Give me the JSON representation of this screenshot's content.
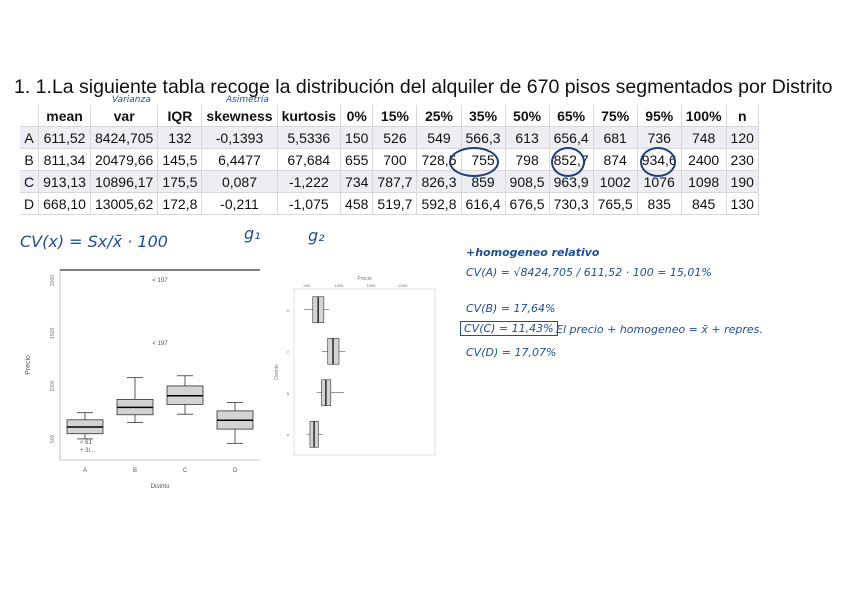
{
  "title": "1. 1.La siguiente tabla recoge la distribución del alquiler de 670 pisos segmentados por Distrito",
  "table": {
    "headers": [
      "",
      "mean",
      "var",
      "IQR",
      "skewness",
      "kurtosis",
      "0%",
      "15%",
      "25%",
      "35%",
      "50%",
      "65%",
      "75%",
      "95%",
      "100%",
      "n"
    ],
    "rows": [
      [
        "A",
        "611,52",
        "8424,705",
        "132",
        "-0,1393",
        "5,5336",
        "150",
        "526",
        "549",
        "566,3",
        "613",
        "656,4",
        "681",
        "736",
        "748",
        "120"
      ],
      [
        "B",
        "811,34",
        "20479,66",
        "145,5",
        "6,4477",
        "67,684",
        "655",
        "700",
        "728,5",
        "755",
        "798",
        "852,7",
        "874",
        "934,6",
        "2400",
        "230"
      ],
      [
        "C",
        "913,13",
        "10896,17",
        "175,5",
        "0,087",
        "-1,222",
        "734",
        "787,7",
        "826,3",
        "859",
        "908,5",
        "963,9",
        "1002",
        "1076",
        "1098",
        "190"
      ],
      [
        "D",
        "668,10",
        "13005,62",
        "172,8",
        "-0,211",
        "-1,075",
        "458",
        "519,7",
        "592,8",
        "616,4",
        "676,5",
        "730,3",
        "765,5",
        "835",
        "845",
        "130"
      ]
    ]
  },
  "annotations": {
    "varianza": "Varianza",
    "asimetria": "Asimetría",
    "cv_formula": "CV(x) = Sx/x̄ · 100",
    "g1": "g₁",
    "g2": "g₂",
    "homogeneo_title": "+homogeneo relativo",
    "cv_a": "CV(A) = √8424,705 / 611,52 · 100 = 15,01%",
    "cv_b": "CV(B) = 17,64%",
    "cv_c": "CV(C) = 11,43%",
    "cv_c_note": "El precio + homogeneo = x̄ + repres.",
    "cv_d": "CV(D) = 17,07%"
  },
  "plot1": {
    "title": "< 197",
    "ylabel": "Precio",
    "xlabel": "Distrito",
    "categories": [
      "A",
      "B",
      "C",
      "D"
    ],
    "outlier_note": "< 197",
    "outlier_note2": "< 61",
    "outlier_note3": "+ 3/...",
    "boxes": [
      {
        "name": "A",
        "min": 500,
        "q1": 549,
        "median": 613,
        "q3": 681,
        "max": 748
      },
      {
        "name": "B",
        "min": 655,
        "q1": 728.5,
        "median": 798,
        "q3": 874,
        "max": 1080
      },
      {
        "name": "C",
        "min": 734,
        "q1": 826.3,
        "median": 908.5,
        "q3": 1002,
        "max": 1098
      },
      {
        "name": "D",
        "min": 458,
        "q1": 592.8,
        "median": 676.5,
        "q3": 765.5,
        "max": 845
      }
    ],
    "y_ticks": [
      "500",
      "1000",
      "1500",
      "2000"
    ]
  },
  "plot2": {
    "xlabel": "Precio",
    "ylabel": "Distrito",
    "x_ticks": [
      "500",
      "1000",
      "1500",
      "2000"
    ],
    "categories": [
      "A",
      "B",
      "C",
      "D"
    ]
  }
}
